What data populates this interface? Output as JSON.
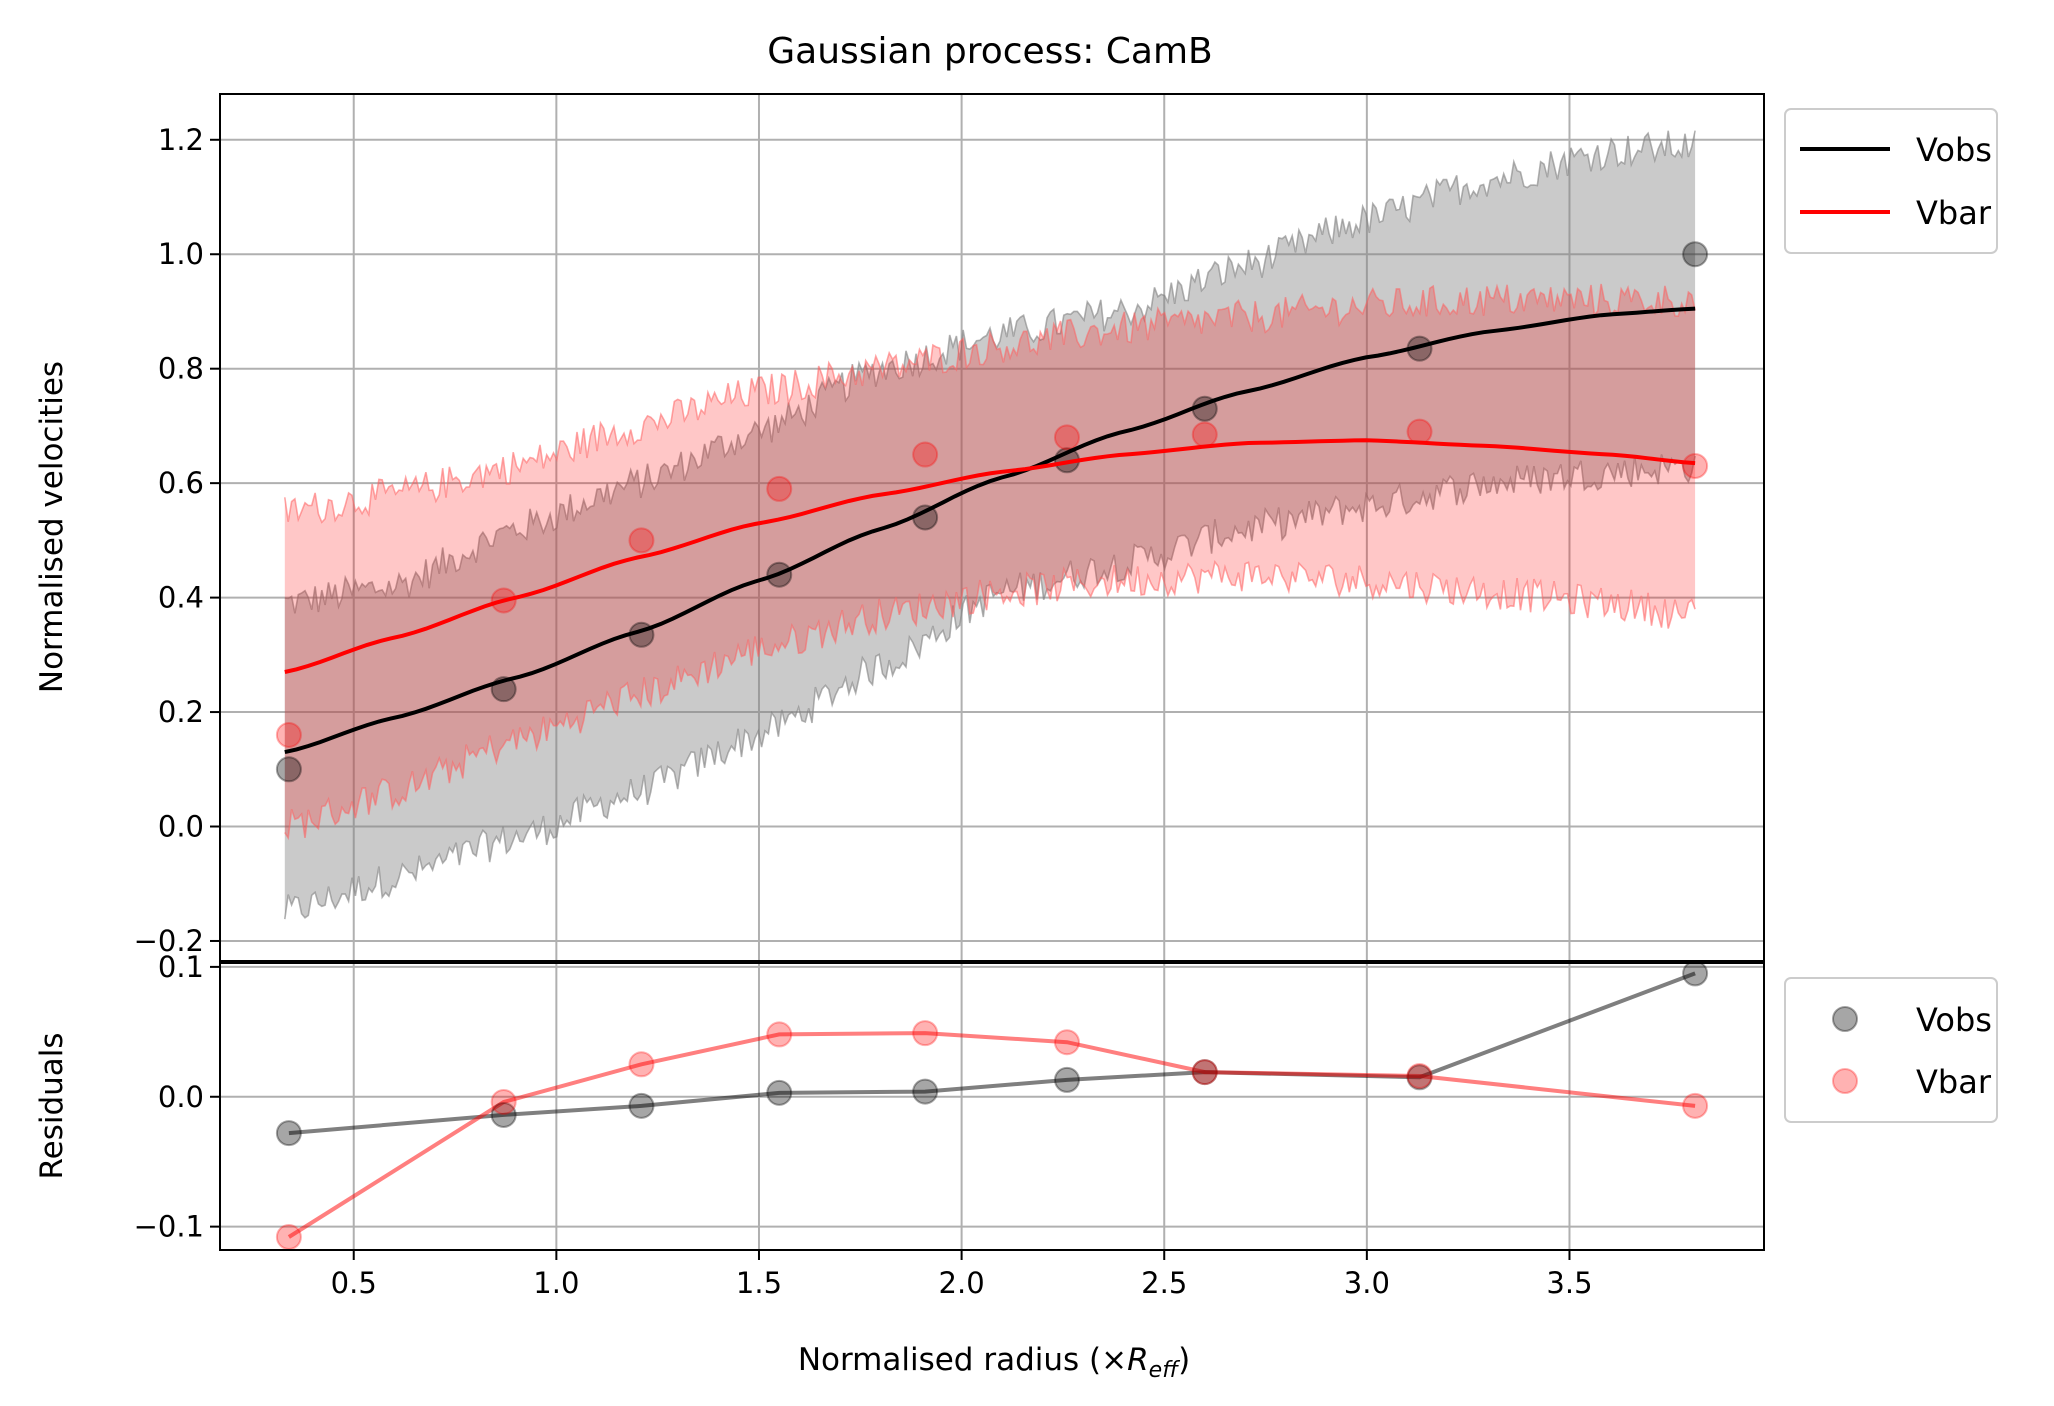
{
  "chart_data": {
    "type": "line",
    "title": "Gaussian process: CamB",
    "xlabel_main": "Normalised radius (×",
    "xlabel_sym": "R",
    "xlabel_sub": "eff",
    "xlabel_close": ")",
    "grid": true,
    "x": [
      0.34,
      0.87,
      1.21,
      1.55,
      1.91,
      2.26,
      2.6,
      3.13,
      3.81
    ],
    "xlim": [
      0.17,
      3.98
    ],
    "xticks": [
      0.5,
      1.0,
      1.5,
      2.0,
      2.5,
      3.0,
      3.5
    ],
    "xtick_labels": [
      "0.5",
      "1.0",
      "1.5",
      "2.0",
      "2.5",
      "3.0",
      "3.5"
    ],
    "main_panel": {
      "ylabel": "Normalised velocities",
      "ylim": [
        -0.235,
        1.28
      ],
      "yticks": [
        -0.2,
        0.0,
        0.2,
        0.4,
        0.6,
        0.8,
        1.0,
        1.2
      ],
      "ytick_labels": [
        "−0.2",
        "0.0",
        "0.2",
        "0.4",
        "0.6",
        "0.8",
        "1.0",
        "1.2"
      ],
      "legend_position": "outside-upper-right",
      "series": [
        {
          "name": "Vobs",
          "color": "#000000",
          "points": [
            0.1,
            0.24,
            0.335,
            0.44,
            0.54,
            0.64,
            0.73,
            0.835,
            1.0
          ],
          "fit_x": [
            0.33,
            0.6,
            0.9,
            1.2,
            1.5,
            1.8,
            2.1,
            2.4,
            2.7,
            3.0,
            3.3,
            3.6,
            3.81
          ],
          "fit_y": [
            0.13,
            0.19,
            0.26,
            0.34,
            0.43,
            0.52,
            0.61,
            0.69,
            0.76,
            0.82,
            0.865,
            0.895,
            0.905
          ],
          "band_lower": [
            -0.15,
            -0.09,
            -0.02,
            0.06,
            0.16,
            0.28,
            0.41,
            0.46,
            0.52,
            0.56,
            0.6,
            0.62,
            0.63
          ],
          "band_upper": [
            0.39,
            0.42,
            0.52,
            0.6,
            0.69,
            0.8,
            0.86,
            0.9,
            0.98,
            1.06,
            1.13,
            1.18,
            1.19
          ]
        },
        {
          "name": "Vbar",
          "color": "#ff0000",
          "points": [
            0.16,
            0.395,
            0.5,
            0.59,
            0.65,
            0.68,
            0.685,
            0.69,
            0.63
          ],
          "fit_x": [
            0.33,
            0.6,
            0.9,
            1.2,
            1.5,
            1.8,
            2.1,
            2.4,
            2.7,
            3.0,
            3.3,
            3.6,
            3.81
          ],
          "fit_y": [
            0.27,
            0.33,
            0.4,
            0.47,
            0.53,
            0.58,
            0.62,
            0.65,
            0.67,
            0.675,
            0.665,
            0.65,
            0.635
          ],
          "band_lower": [
            0.0,
            0.06,
            0.15,
            0.23,
            0.31,
            0.37,
            0.41,
            0.43,
            0.44,
            0.43,
            0.41,
            0.39,
            0.37
          ],
          "band_upper": [
            0.55,
            0.58,
            0.63,
            0.7,
            0.76,
            0.8,
            0.84,
            0.87,
            0.89,
            0.91,
            0.92,
            0.92,
            0.92
          ]
        }
      ]
    },
    "residual_panel": {
      "ylabel": "Residuals",
      "ylim": [
        -0.118,
        0.103
      ],
      "yticks": [
        -0.1,
        0.0,
        0.1
      ],
      "ytick_labels": [
        "−0.1",
        "0.0",
        "0.1"
      ],
      "legend_position": "outside-upper-right",
      "series": [
        {
          "name": "Vobs",
          "color": "#000000",
          "values": [
            -0.028,
            -0.014,
            -0.007,
            0.003,
            0.004,
            0.013,
            0.019,
            0.015,
            0.095
          ]
        },
        {
          "name": "Vbar",
          "color": "#ff0000",
          "values": [
            -0.108,
            -0.004,
            0.025,
            0.048,
            0.049,
            0.042,
            0.019,
            0.016,
            -0.007
          ]
        }
      ]
    }
  }
}
